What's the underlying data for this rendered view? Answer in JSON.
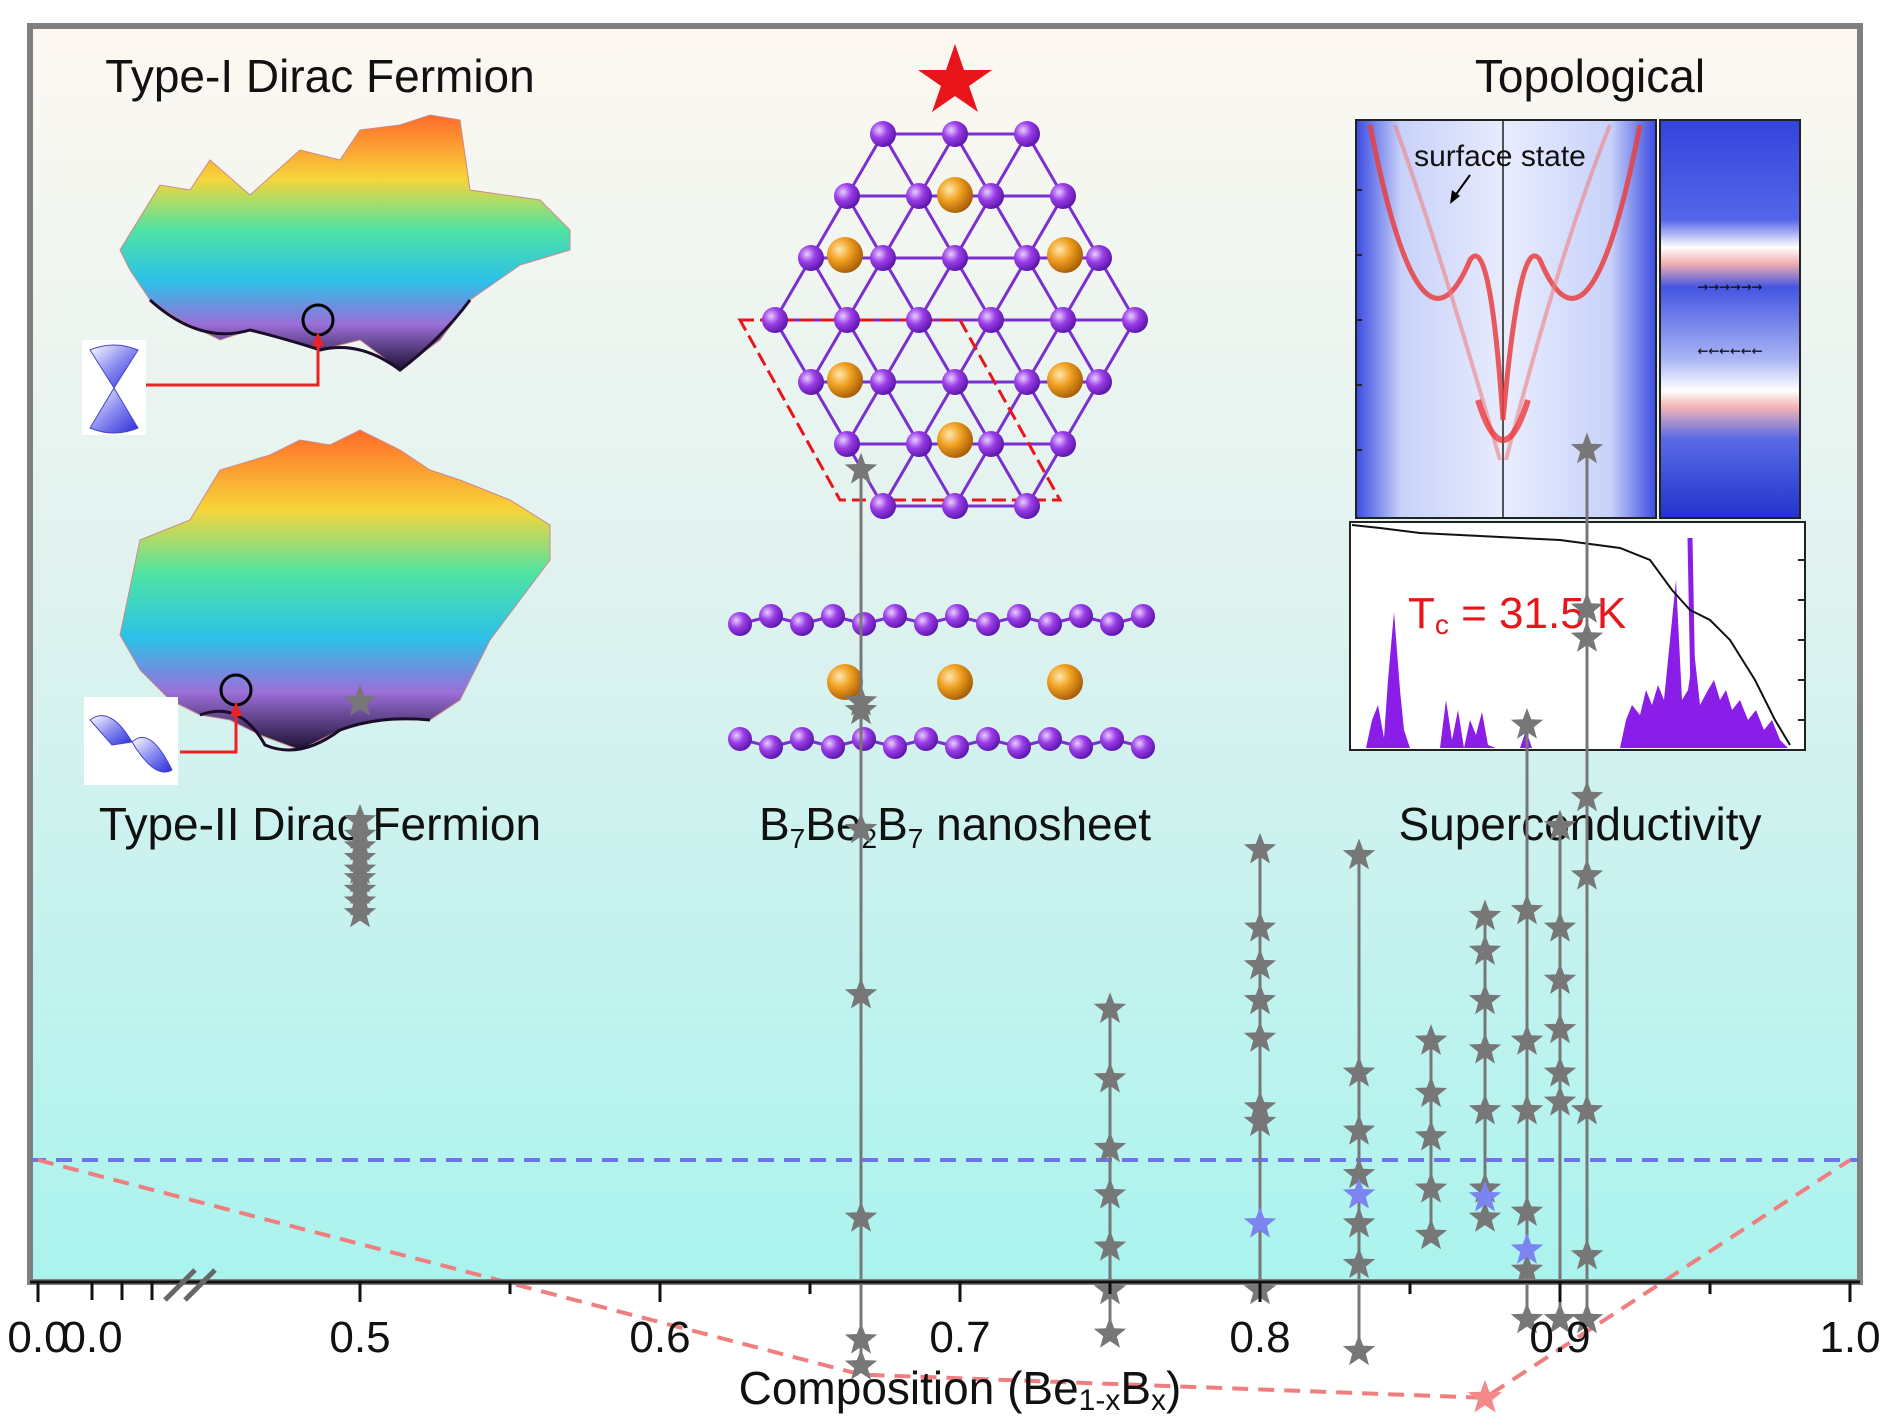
{
  "chart_data": {
    "type": "scatter",
    "xlabel": "Composition (Be1-xBx)",
    "xlabel_parts": [
      "Composition (Be",
      "1-x",
      "B",
      "x",
      ")"
    ],
    "xlim": [
      0.0,
      1.0
    ],
    "x_ticks": [
      "0.0",
      "0.0",
      "0.5",
      "0.6",
      "0.7",
      "0.8",
      "0.9",
      "1.0"
    ],
    "x_break": true,
    "y_ticks_visible": false,
    "reference_line": {
      "name": "zero level",
      "color": "#6f73ee",
      "style": "dashed"
    },
    "hull_line": {
      "name": "convex hull",
      "color": "#ef7f7f",
      "style": "dashed",
      "points": [
        {
          "x": 0.0,
          "y": 0.0
        },
        {
          "x": 0.667,
          "y": -0.74
        },
        {
          "x": 0.875,
          "y": -0.82
        },
        {
          "x": 1.0,
          "y": 0.0
        }
      ]
    },
    "series": [
      {
        "name": "metastable structures",
        "marker": "star",
        "color": "#777777",
        "groups": [
          {
            "x": 0.5,
            "connected": false,
            "y": [
              1.58,
              1.17,
              1.12,
              1.08,
              1.04,
              1.0,
              0.97,
              0.93,
              0.89,
              0.85
            ]
          },
          {
            "x": 0.667,
            "connected": true,
            "y": [
              2.38,
              1.58,
              1.55,
              1.14,
              0.57,
              -0.2,
              -0.62,
              -0.71
            ]
          },
          {
            "x": 0.75,
            "connected": true,
            "y": [
              0.52,
              0.28,
              0.04,
              -0.12,
              -0.3,
              -0.45,
              -0.6
            ]
          },
          {
            "x": 0.8,
            "connected": true,
            "y": [
              1.07,
              0.8,
              0.67,
              0.55,
              0.42,
              0.18,
              0.13,
              -0.45
            ]
          },
          {
            "x": 0.833,
            "connected": true,
            "y": [
              1.05,
              0.3,
              0.1,
              -0.05,
              -0.22,
              -0.36,
              -0.66
            ]
          },
          {
            "x": 0.857,
            "connected": true,
            "y": [
              0.41,
              0.23,
              0.08,
              -0.1,
              -0.26
            ]
          },
          {
            "x": 0.875,
            "connected": true,
            "y": [
              0.84,
              0.72,
              0.55,
              0.38,
              0.17,
              -0.1,
              -0.2
            ]
          },
          {
            "x": 0.889,
            "connected": true,
            "y": [
              1.5,
              0.86,
              0.41,
              0.17,
              -0.18,
              -0.38,
              -0.55
            ]
          },
          {
            "x": 0.9,
            "connected": true,
            "y": [
              1.15,
              0.8,
              0.62,
              0.45,
              0.3,
              0.2,
              -0.55
            ]
          },
          {
            "x": 0.909,
            "connected": true,
            "y": [
              2.45,
              1.9,
              1.8,
              1.25,
              0.98,
              0.17,
              -0.33,
              -0.55
            ]
          }
        ]
      },
      {
        "name": "near-hull structures",
        "marker": "star",
        "color": "#7b84ef",
        "points": [
          {
            "x": 0.8,
            "y": -0.22
          },
          {
            "x": 0.833,
            "y": -0.12
          },
          {
            "x": 0.875,
            "y": -0.13
          },
          {
            "x": 0.889,
            "y": -0.31
          }
        ]
      },
      {
        "name": "B7Be2B7 (ground state)",
        "marker": "star",
        "color": "#f28a8a",
        "points": [
          {
            "x": 0.875,
            "y": -0.82
          }
        ]
      }
    ]
  },
  "panels": {
    "dirac": {
      "title_top": "Type-I Dirac Fermion",
      "title_bottom": "Type-II Dirac Fermion"
    },
    "structure": {
      "title": "B7Be2B7 nanosheet",
      "title_parts": [
        "B",
        "7",
        "Be",
        "2",
        "B",
        "7",
        " nanosheet"
      ],
      "star_color": "#e8161b"
    },
    "topo": {
      "title_top": "Topological",
      "surface_label": "surface state",
      "tc_main": "T",
      "tc_sub": "c",
      "tc_value": " = 31.5 K",
      "title_bottom": "Superconductivity"
    }
  }
}
